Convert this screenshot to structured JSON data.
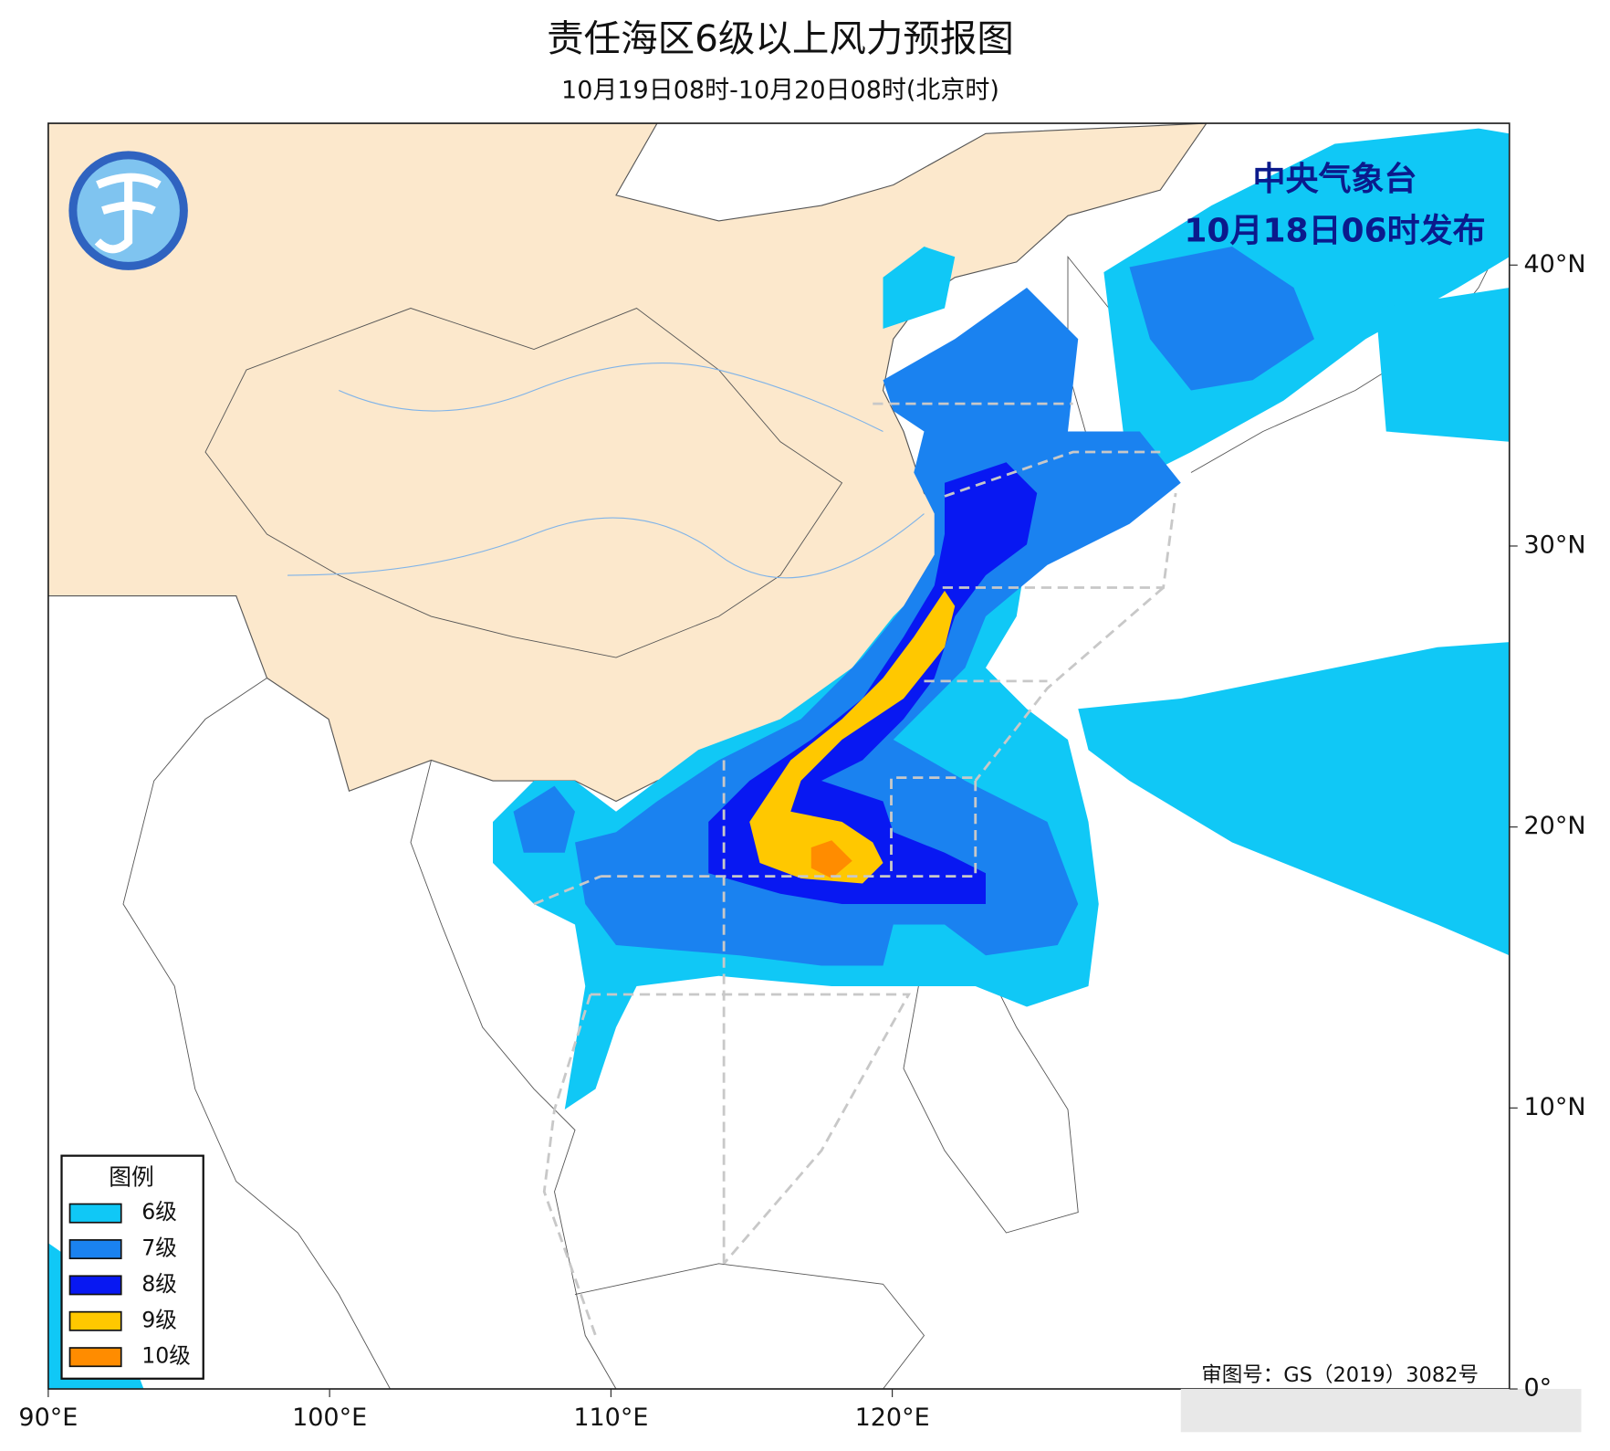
{
  "header": {
    "title": "责任海区6级以上风力预报图",
    "subtitle": "10月19日08时-10月20日08时(北京时)"
  },
  "map": {
    "issuer": "中央气象台",
    "issued": "10月18日06时发布",
    "approval": "审图号：GS（2019）3082号",
    "lon_labels": [
      "90°E",
      "100°E",
      "110°E",
      "120°E"
    ],
    "lat_labels": [
      "40°N",
      "30°N",
      "20°N",
      "10°N",
      "0°"
    ]
  },
  "legend": {
    "title": "图例",
    "items": [
      {
        "label": "6级",
        "color": "#10c8f6"
      },
      {
        "label": "7级",
        "color": "#1a82f0"
      },
      {
        "label": "8级",
        "color": "#0818f2"
      },
      {
        "label": "9级",
        "color": "#ffc800"
      },
      {
        "label": "10级",
        "color": "#ff8c00"
      }
    ]
  }
}
